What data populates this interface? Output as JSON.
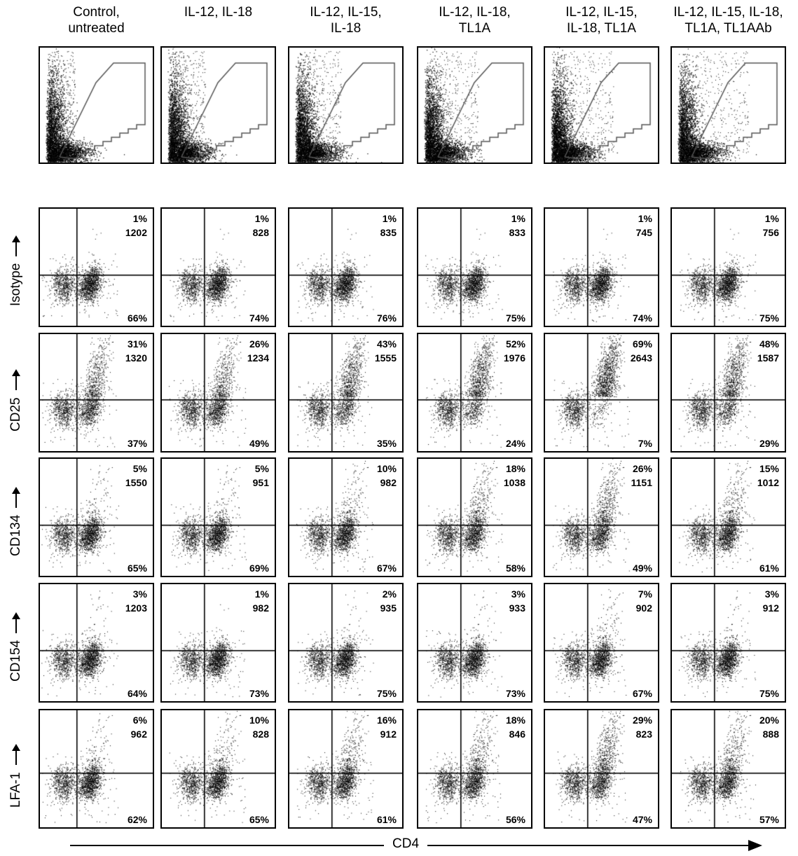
{
  "chart_data": {
    "type": "scatter",
    "x_axis_label": "CD4",
    "conditions": [
      "Control,\nuntreated",
      "IL-12, IL-18",
      "IL-12, IL-15,\nIL-18",
      "IL-12, IL-18,\nTL1A",
      "IL-12, IL-15,\nIL-18, TL1A",
      "IL-12, IL-15, IL-18,\nTL1A, TL1AAb"
    ],
    "rows": [
      {
        "marker": "Isotype",
        "upper_right_percent": [
          "1%",
          "1%",
          "1%",
          "1%",
          "1%",
          "1%"
        ],
        "upper_right_mfi": [
          "1202",
          "828",
          "835",
          "833",
          "745",
          "756"
        ],
        "lower_right_percent": [
          "66%",
          "74%",
          "76%",
          "75%",
          "74%",
          "75%"
        ]
      },
      {
        "marker": "CD25",
        "upper_right_percent": [
          "31%",
          "26%",
          "43%",
          "52%",
          "69%",
          "48%"
        ],
        "upper_right_mfi": [
          "1320",
          "1234",
          "1555",
          "1976",
          "2643",
          "1587"
        ],
        "lower_right_percent": [
          "37%",
          "49%",
          "35%",
          "24%",
          "7%",
          "29%"
        ]
      },
      {
        "marker": "CD134",
        "upper_right_percent": [
          "5%",
          "5%",
          "10%",
          "18%",
          "26%",
          "15%"
        ],
        "upper_right_mfi": [
          "1550",
          "951",
          "982",
          "1038",
          "1151",
          "1012"
        ],
        "lower_right_percent": [
          "65%",
          "69%",
          "67%",
          "58%",
          "49%",
          "61%"
        ]
      },
      {
        "marker": "CD154",
        "upper_right_percent": [
          "3%",
          "1%",
          "2%",
          "3%",
          "7%",
          "3%"
        ],
        "upper_right_mfi": [
          "1203",
          "982",
          "935",
          "933",
          "902",
          "912"
        ],
        "lower_right_percent": [
          "64%",
          "73%",
          "75%",
          "73%",
          "67%",
          "75%"
        ]
      },
      {
        "marker": "LFA-1",
        "upper_right_percent": [
          "6%",
          "10%",
          "16%",
          "18%",
          "29%",
          "20%"
        ],
        "upper_right_mfi": [
          "962",
          "828",
          "912",
          "846",
          "823",
          "888"
        ],
        "lower_right_percent": [
          "62%",
          "65%",
          "61%",
          "56%",
          "47%",
          "57%"
        ]
      }
    ]
  }
}
